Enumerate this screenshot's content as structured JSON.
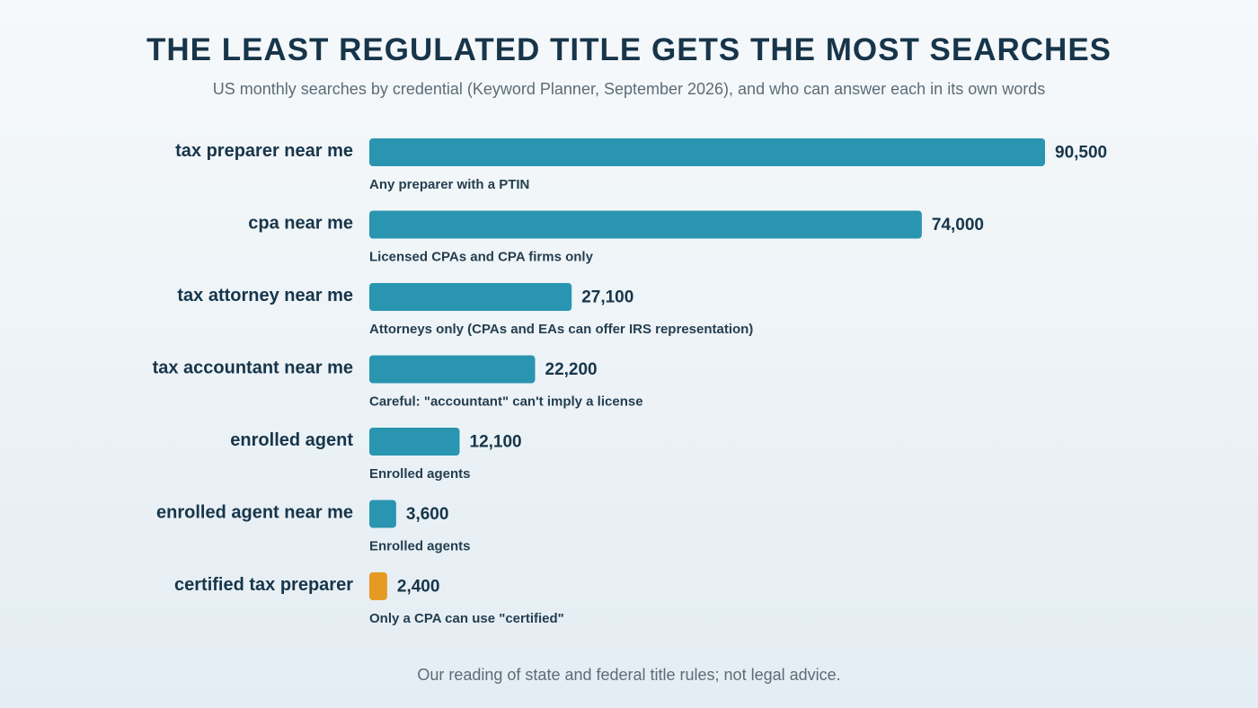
{
  "header": {
    "title": "THE LEAST REGULATED TITLE GETS THE MOST SEARCHES",
    "subtitle": "US monthly searches by credential (Keyword Planner, September 2026), and who can answer each in its own words"
  },
  "footnote": "Our reading of state and federal title rules; not legal advice.",
  "colors": {
    "default_bar": "#2a95b0",
    "highlight_bar": "#e69a22",
    "category_text": "#17354a",
    "value_text": "#17354a",
    "note_text": "#243e50"
  },
  "chart_data": {
    "type": "bar",
    "orientation": "horizontal",
    "title": "THE LEAST REGULATED TITLE GETS THE MOST SEARCHES",
    "xlabel": "",
    "ylabel": "",
    "grid": false,
    "legend": "none",
    "xlim": [
      0,
      90500
    ],
    "categories": [
      "tax preparer near me",
      "cpa near me",
      "tax attorney near me",
      "tax accountant near me",
      "enrolled agent",
      "enrolled agent near me",
      "certified tax preparer"
    ],
    "values": [
      90500,
      74000,
      27100,
      22200,
      12100,
      3600,
      2400
    ],
    "value_labels": [
      "90,500",
      "74,000",
      "27,100",
      "22,200",
      "12,100",
      "3,600",
      "2,400"
    ],
    "annotations": [
      "Any preparer with a PTIN",
      "Licensed CPAs and CPA firms only",
      "Attorneys only (CPAs and EAs can offer IRS representation)",
      "Careful: \"accountant\" can't imply a license",
      "Enrolled agents",
      "Enrolled agents",
      "Only a CPA can use \"certified\""
    ],
    "highlighted": [
      false,
      false,
      false,
      false,
      false,
      false,
      true
    ]
  }
}
